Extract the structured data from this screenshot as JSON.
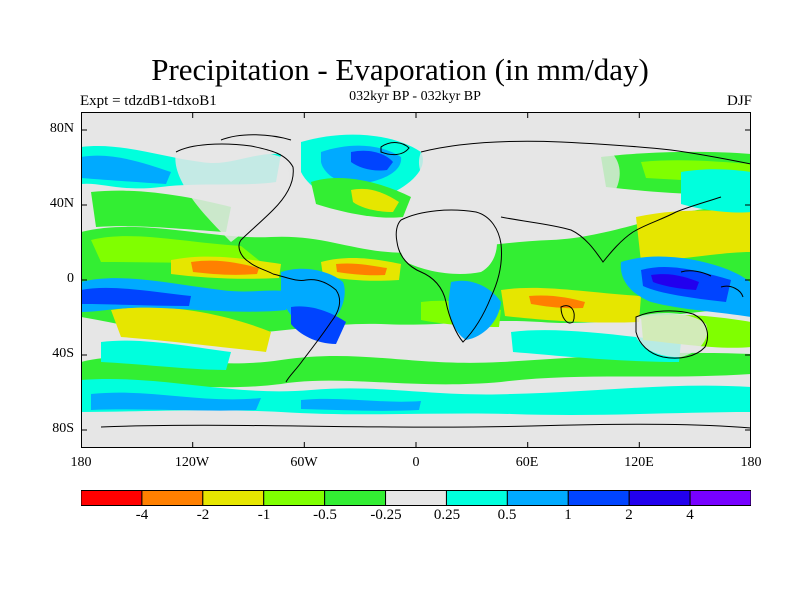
{
  "title": "Precipitation - Evaporation (in mm/day)",
  "subtitle": "032kyr BP - 032kyr BP",
  "left_label": "Expt = tdzdB1-tdxoB1",
  "right_label": "DJF",
  "lat_labels": [
    "80N",
    "40N",
    "0",
    "40S",
    "80S"
  ],
  "lon_labels": [
    "180",
    "120W",
    "60W",
    "0",
    "60E",
    "120E",
    "180"
  ],
  "colorbar": {
    "colors": [
      "#ff0000",
      "#ff8000",
      "#e6e600",
      "#80ff00",
      "#33ee33",
      "#e6e6e6",
      "#00ffdd",
      "#00aaff",
      "#0044ff",
      "#2200ee",
      "#7700ff"
    ],
    "labels": [
      "-4",
      "-2",
      "-1",
      "-0.5",
      "-0.25",
      "0.25",
      "0.5",
      "1",
      "2",
      "4"
    ]
  },
  "colors": {
    "ocean_dry": "#e6e6e6",
    "coast": "#000000"
  }
}
